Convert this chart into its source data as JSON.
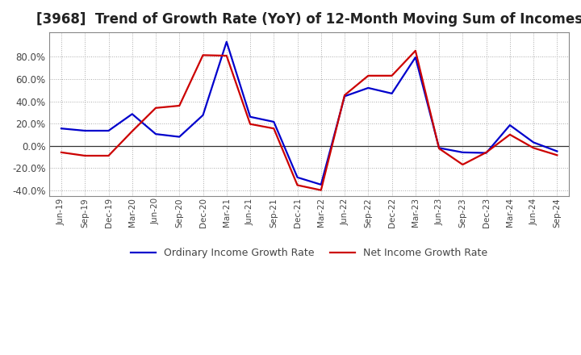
{
  "title": "[3968]  Trend of Growth Rate (YoY) of 12-Month Moving Sum of Incomes",
  "title_fontsize": 12,
  "ylim": [
    -0.45,
    1.02
  ],
  "yticks": [
    -0.4,
    -0.2,
    0.0,
    0.2,
    0.4,
    0.6,
    0.8
  ],
  "background_color": "#ffffff",
  "plot_bg_color": "#ffffff",
  "grid_color": "#aaaaaa",
  "ordinary_color": "#0000cc",
  "net_color": "#cc0000",
  "legend_labels": [
    "Ordinary Income Growth Rate",
    "Net Income Growth Rate"
  ],
  "x_labels": [
    "Jun-19",
    "Sep-19",
    "Dec-19",
    "Mar-20",
    "Jun-20",
    "Sep-20",
    "Dec-20",
    "Mar-21",
    "Jun-21",
    "Sep-21",
    "Dec-21",
    "Mar-22",
    "Jun-22",
    "Sep-22",
    "Dec-22",
    "Mar-23",
    "Jun-23",
    "Sep-23",
    "Dec-23",
    "Mar-24",
    "Jun-24",
    "Sep-24"
  ],
  "ordinary_income": [
    0.155,
    0.135,
    0.135,
    0.285,
    0.105,
    0.08,
    0.275,
    0.935,
    0.26,
    0.215,
    -0.285,
    -0.35,
    0.445,
    0.52,
    0.47,
    0.795,
    -0.02,
    -0.06,
    -0.065,
    0.185,
    0.03,
    -0.05
  ],
  "net_income": [
    -0.06,
    -0.09,
    -0.09,
    0.13,
    0.34,
    0.36,
    0.815,
    0.81,
    0.195,
    0.155,
    -0.355,
    -0.4,
    0.455,
    0.63,
    0.63,
    0.855,
    -0.025,
    -0.17,
    -0.06,
    0.1,
    -0.02,
    -0.085
  ]
}
